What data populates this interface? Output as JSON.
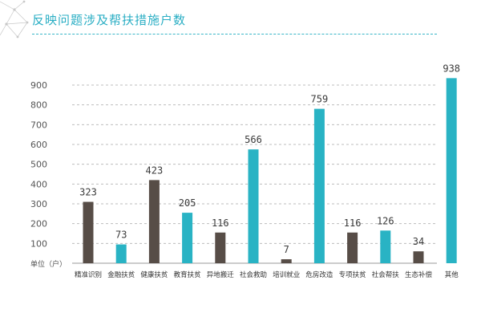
{
  "header": {
    "title": "反映问题涉及帮扶措施户数"
  },
  "chart_data": {
    "type": "bar",
    "title": "反映问题涉及帮扶措施户数",
    "ylabel": "单位（户）",
    "xlabel": "",
    "ylim": [
      0,
      900
    ],
    "yticks": [
      100,
      200,
      300,
      400,
      500,
      600,
      700,
      800,
      900
    ],
    "categories": [
      "精准识别",
      "金融扶贫",
      "健康扶贫",
      "教育扶贫",
      "异地搬迁",
      "社会救助",
      "培训就业",
      "危房改造",
      "专项扶贫",
      "社会帮扶",
      "生态补偿",
      "其他"
    ],
    "values": [
      323,
      73,
      423,
      205,
      116,
      566,
      7,
      759,
      116,
      126,
      34,
      938
    ],
    "bar_heights": [
      310,
      95,
      420,
      255,
      155,
      575,
      20,
      780,
      155,
      165,
      60,
      935
    ],
    "colors": [
      "#574d47",
      "#29b3c4",
      "#574d47",
      "#29b3c4",
      "#574d47",
      "#29b3c4",
      "#574d47",
      "#29b3c4",
      "#574d47",
      "#29b3c4",
      "#574d47",
      "#29b3c4"
    ],
    "grid": true
  }
}
